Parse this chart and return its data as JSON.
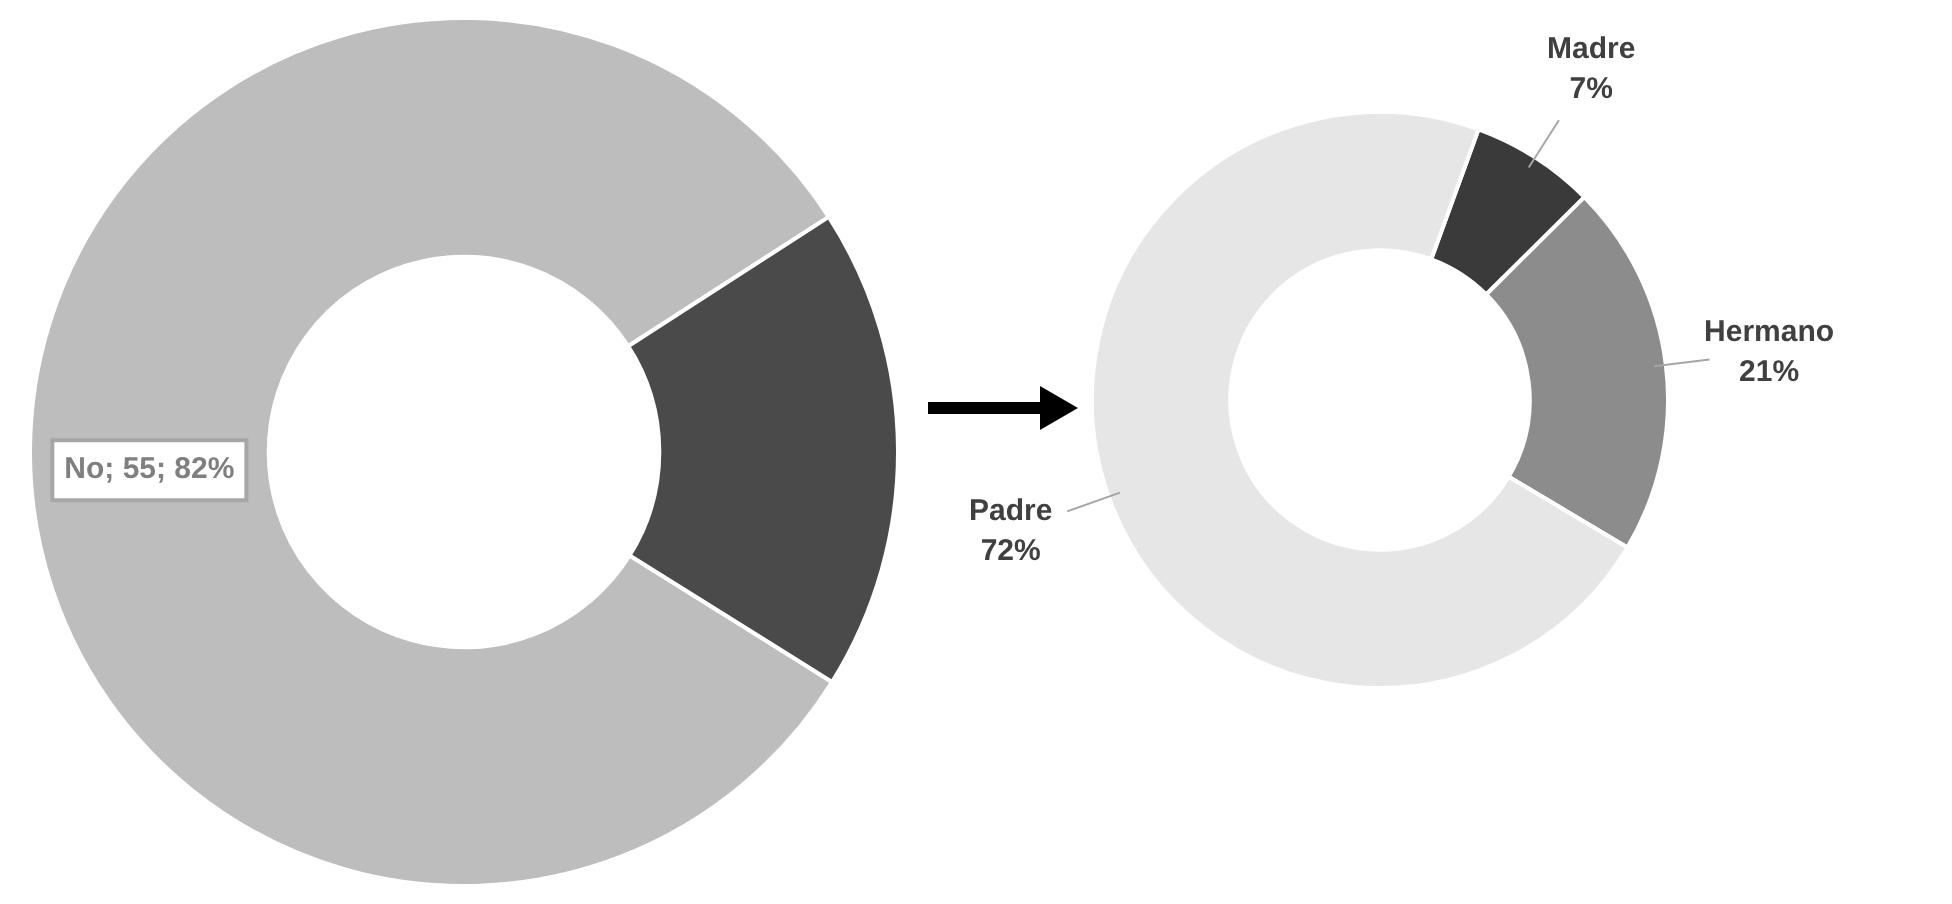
{
  "chart_data": [
    {
      "type": "donut",
      "categories": [
        "No",
        null
      ],
      "values": [
        82,
        18
      ],
      "colors": [
        "#bdbdbd",
        "#4a4a4a"
      ],
      "value_labels": [
        "55; 82%",
        null
      ]
    },
    {
      "type": "donut",
      "categories": [
        "Madre",
        "Hermano",
        "Padre"
      ],
      "values": [
        7,
        21,
        72
      ],
      "colors": [
        "#3a3a3a",
        "#8c8c8c",
        "#e6e6e6"
      ],
      "value_labels": [
        "7%",
        "21%",
        "72%"
      ]
    }
  ]
}
